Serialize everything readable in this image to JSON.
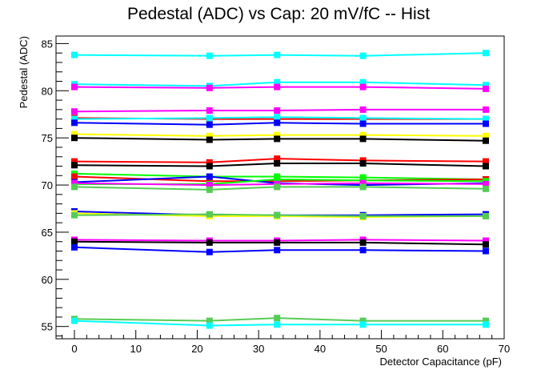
{
  "chart_data": {
    "type": "line",
    "title": "Pedestal (ADC) vs Cap: 20 mV/fC -- Hist",
    "xlabel": "Detector Capacitance (pF)",
    "ylabel": "Pedestal (ADC)",
    "xlim": [
      -3,
      70
    ],
    "ylim": [
      53.7,
      85.8
    ],
    "x": [
      0,
      22,
      33,
      47,
      67
    ],
    "xticks": [
      0,
      10,
      20,
      30,
      40,
      50,
      60,
      70
    ],
    "yticks": [
      55,
      60,
      65,
      70,
      75,
      80,
      85
    ],
    "grid": false,
    "marker": "square",
    "series": [
      {
        "color": "#00ffff",
        "values": [
          83.8,
          83.7,
          83.8,
          83.7,
          84.0
        ]
      },
      {
        "color": "#00ffff",
        "values": [
          80.7,
          80.5,
          80.9,
          80.9,
          80.6
        ]
      },
      {
        "color": "#ff00ff",
        "values": [
          80.4,
          80.3,
          80.4,
          80.4,
          80.2
        ]
      },
      {
        "color": "#ff00ff",
        "values": [
          77.8,
          77.9,
          77.9,
          78.0,
          78.0
        ]
      },
      {
        "color": "#ff0000",
        "values": [
          77.1,
          77.0,
          77.0,
          77.0,
          77.0
        ]
      },
      {
        "color": "#00ffff",
        "values": [
          77.0,
          77.1,
          77.2,
          77.1,
          77.0
        ]
      },
      {
        "color": "#0000ff",
        "values": [
          76.6,
          76.4,
          76.6,
          76.5,
          76.5
        ]
      },
      {
        "color": "#ffff00",
        "values": [
          75.4,
          75.2,
          75.3,
          75.3,
          75.2
        ]
      },
      {
        "color": "#000000",
        "values": [
          75.0,
          74.8,
          74.9,
          74.9,
          74.7
        ]
      },
      {
        "color": "#ff0000",
        "values": [
          72.5,
          72.4,
          72.8,
          72.6,
          72.5
        ]
      },
      {
        "color": "#000000",
        "values": [
          72.1,
          72.0,
          72.3,
          72.3,
          72.0
        ]
      },
      {
        "color": "#00ff00",
        "values": [
          71.2,
          70.9,
          70.9,
          70.8,
          70.6
        ]
      },
      {
        "color": "#ff0000",
        "values": [
          70.9,
          70.4,
          70.4,
          70.5,
          70.6
        ]
      },
      {
        "color": "#0000ff",
        "values": [
          70.3,
          70.9,
          70.2,
          70.0,
          70.2
        ]
      },
      {
        "color": "#00ff00",
        "values": [
          70.1,
          70.1,
          70.6,
          70.5,
          70.4
        ]
      },
      {
        "color": "#ff00ff",
        "values": [
          70.2,
          70.0,
          70.1,
          70.2,
          70.1
        ]
      },
      {
        "color": "#55cc55",
        "values": [
          69.8,
          69.5,
          69.8,
          69.8,
          69.6
        ]
      },
      {
        "color": "#0000ff",
        "values": [
          67.2,
          66.8,
          66.8,
          66.8,
          66.9
        ]
      },
      {
        "color": "#ffff00",
        "values": [
          67.0,
          66.7,
          66.7,
          66.6,
          66.7
        ]
      },
      {
        "color": "#55cc55",
        "values": [
          66.8,
          66.9,
          66.8,
          66.7,
          66.7
        ]
      },
      {
        "color": "#ff00ff",
        "values": [
          64.2,
          64.1,
          64.1,
          64.2,
          64.1
        ]
      },
      {
        "color": "#000000",
        "values": [
          64.0,
          63.9,
          63.9,
          63.9,
          63.7
        ]
      },
      {
        "color": "#0000ff",
        "values": [
          63.4,
          62.9,
          63.1,
          63.1,
          63.0
        ]
      },
      {
        "color": "#55cc55",
        "values": [
          55.8,
          55.6,
          55.9,
          55.6,
          55.6
        ]
      },
      {
        "color": "#00ffff",
        "values": [
          55.6,
          55.1,
          55.2,
          55.2,
          55.2
        ]
      }
    ]
  }
}
